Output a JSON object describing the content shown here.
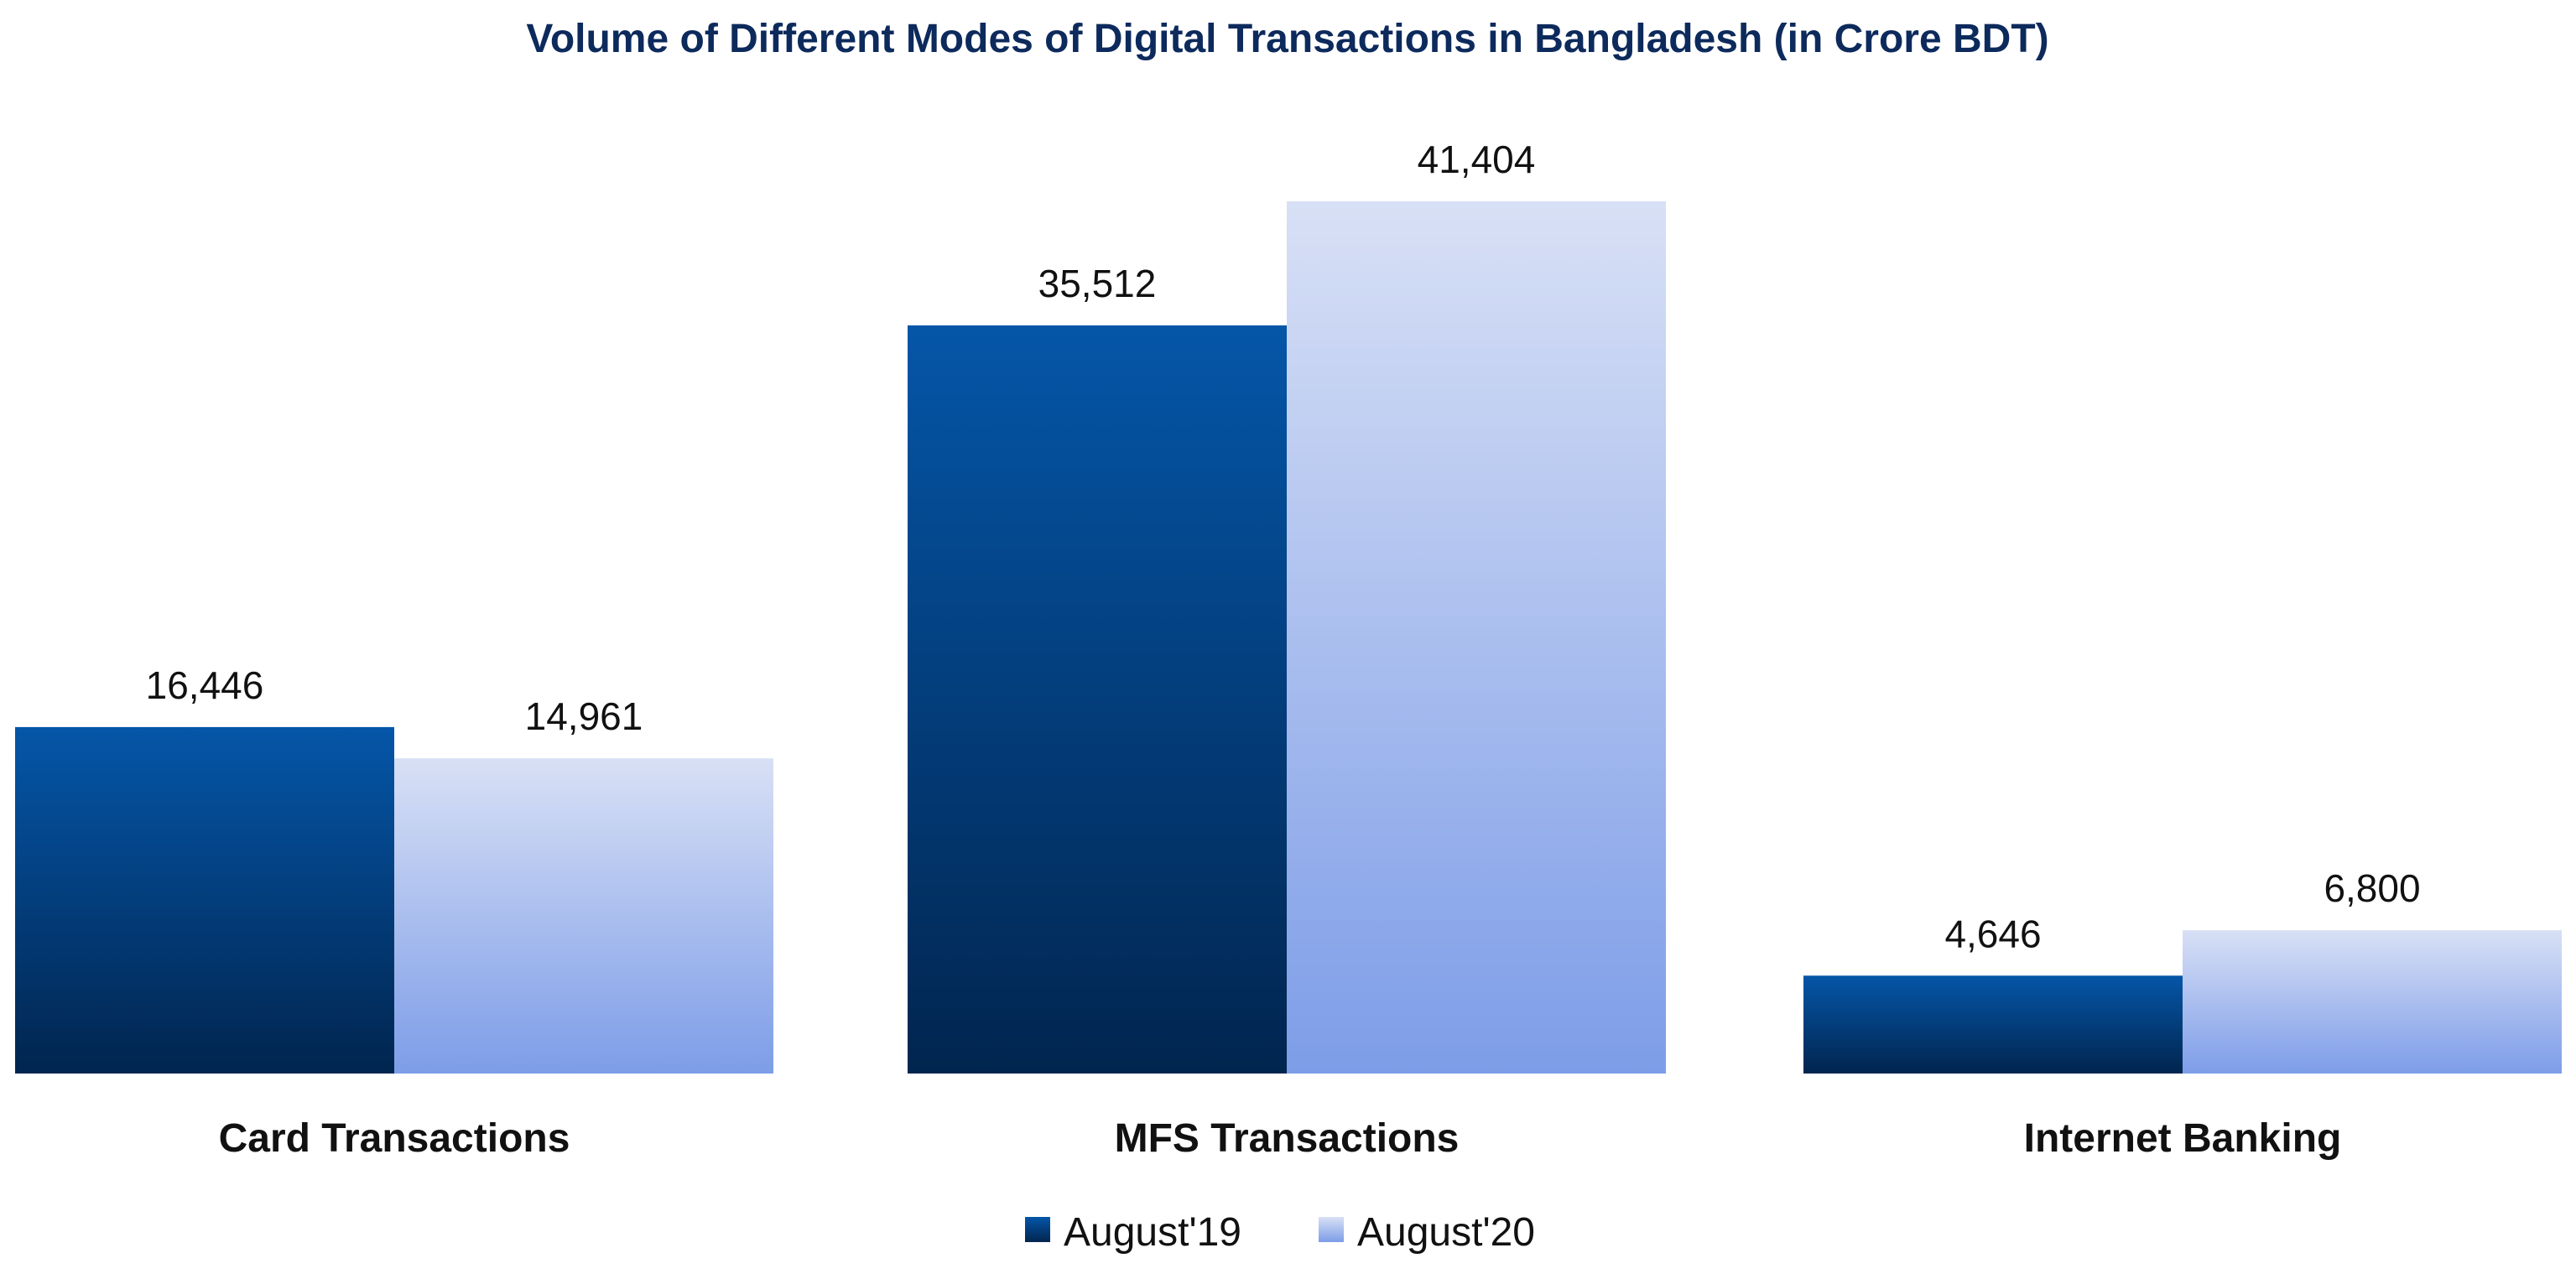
{
  "chart_data": {
    "type": "bar",
    "title": "Volume of Different Modes of Digital Transactions in Bangladesh (in Crore BDT)",
    "categories": [
      "Card Transactions",
      "MFS Transactions",
      "Internet Banking"
    ],
    "series": [
      {
        "name": "August'19",
        "values": [
          16446,
          35512,
          4646
        ],
        "labels": [
          "16,446",
          "35,512",
          "4,646"
        ],
        "color_top": "#0556a8",
        "color_bottom": "#01254f"
      },
      {
        "name": "August'20",
        "values": [
          14961,
          41404,
          6800
        ],
        "labels": [
          "14,961",
          "41,404",
          "6,800"
        ],
        "color_top": "#d8e0f5",
        "color_bottom": "#7d9de8"
      }
    ],
    "ylim": [
      0,
      41404
    ],
    "grid": false,
    "legend_position": "bottom-center"
  }
}
